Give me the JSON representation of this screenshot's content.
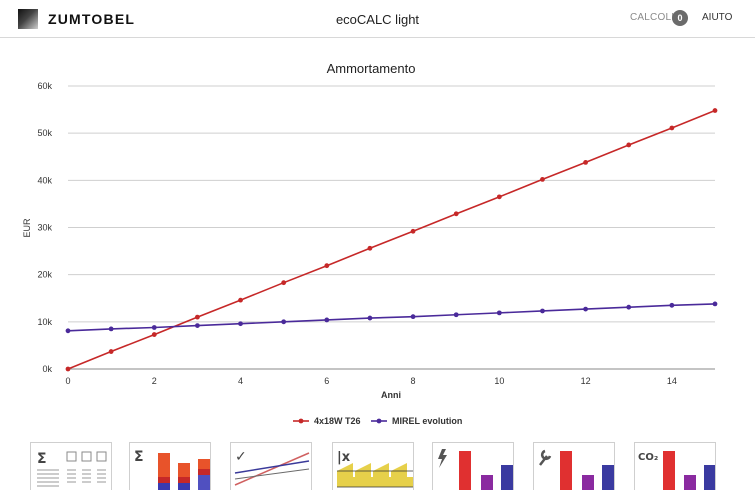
{
  "header": {
    "brand": "ZUMTOBEL",
    "app_title": "ecoCALC light",
    "calcoli_label": "CALCOLI",
    "calcoli_count": "0",
    "help_label": "AIUTO"
  },
  "chart_data": {
    "type": "line",
    "title": "Ammortamento",
    "xlabel": "Anni",
    "ylabel": "EUR",
    "xlim": [
      0,
      15
    ],
    "ylim": [
      0,
      60000
    ],
    "x_ticks": [
      0,
      2,
      4,
      6,
      8,
      10,
      12,
      14
    ],
    "x_tick_labels": [
      "0",
      "2",
      "4",
      "6",
      "8",
      "10",
      "12",
      "14"
    ],
    "y_ticks": [
      0,
      10000,
      20000,
      30000,
      40000,
      50000,
      60000
    ],
    "y_tick_labels": [
      "0k",
      "10k",
      "20k",
      "30k",
      "40k",
      "50k",
      "60k"
    ],
    "grid": true,
    "legend_position": "bottom",
    "x": [
      0,
      1,
      2,
      3,
      4,
      5,
      6,
      7,
      8,
      9,
      10,
      11,
      12,
      13,
      14,
      15
    ],
    "series": [
      {
        "name": "4x18W T26",
        "color": "#c62828",
        "values": [
          0,
          3700,
          7300,
          11000,
          14600,
          18300,
          21900,
          25600,
          29200,
          32900,
          36500,
          40200,
          43800,
          47500,
          51100,
          54800
        ]
      },
      {
        "name": "MIREL evolution",
        "color": "#4a2a9a",
        "values": [
          8100,
          8500,
          8800,
          9200,
          9600,
          10000,
          10400,
          10800,
          11100,
          11500,
          11900,
          12300,
          12700,
          13100,
          13500,
          13800
        ]
      }
    ]
  },
  "toolbar": {
    "items": [
      {
        "name": "summary-table",
        "icon": "sigma-table-icon",
        "symbol": "Σ"
      },
      {
        "name": "cost-sum",
        "icon": "sigma-stacked-bars-icon",
        "symbol": "Σ"
      },
      {
        "name": "amortization",
        "icon": "check-lines-icon",
        "symbol": "✓"
      },
      {
        "name": "energy-cost",
        "icon": "energy-wave-icon",
        "symbol": "|x"
      },
      {
        "name": "energy",
        "icon": "lightning-bars-icon",
        "symbol": ""
      },
      {
        "name": "maintenance",
        "icon": "wrench-bars-icon",
        "symbol": ""
      },
      {
        "name": "co2",
        "icon": "co2-bars-icon",
        "symbol": "CO₂"
      }
    ]
  }
}
